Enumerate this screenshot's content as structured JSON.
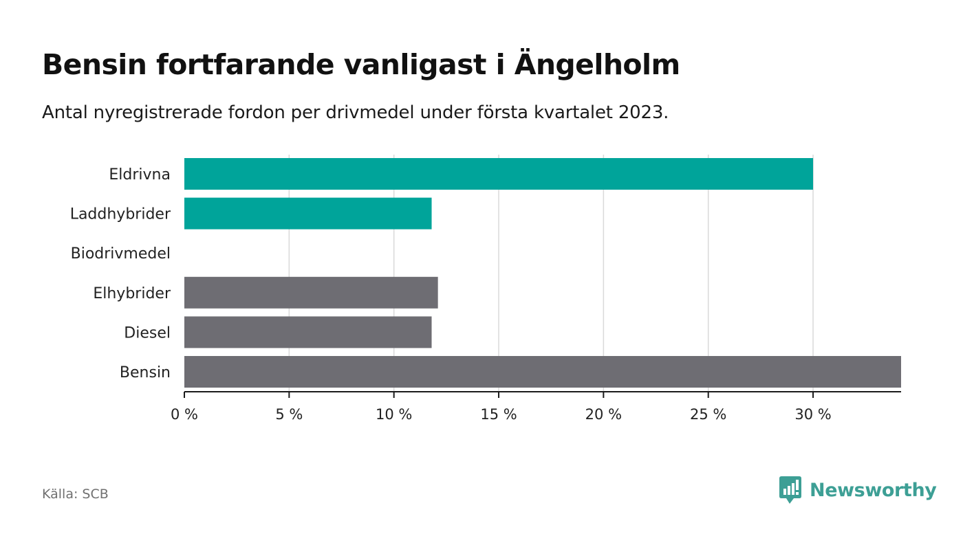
{
  "title": "Bensin fortfarande vanligast i Ängelholm",
  "subtitle": "Antal nyregistrerade fordon per drivmedel under första kvartalet 2023.",
  "source": "Källa: SCB",
  "brand": {
    "name": "Newsworthy",
    "icon": "newsworthy-logo-icon",
    "color": "#3d9f95"
  },
  "chart_data": {
    "type": "bar",
    "orientation": "horizontal",
    "categories": [
      "Eldrivna",
      "Laddhybrider",
      "Biodrivmedel",
      "Elhybrider",
      "Diesel",
      "Bensin"
    ],
    "values": [
      30.0,
      11.8,
      0,
      12.1,
      11.8,
      34.2
    ],
    "colors": [
      "#00a49a",
      "#00a49a",
      "#00a49a",
      "#6e6d73",
      "#6e6d73",
      "#6e6d73"
    ],
    "xlim": [
      0,
      34.2
    ],
    "x_ticks": [
      0,
      5,
      10,
      15,
      20,
      25,
      30
    ],
    "x_tick_labels": [
      "0 %",
      "5 %",
      "10 %",
      "15 %",
      "20 %",
      "25 %",
      "30 %"
    ],
    "xlabel": "",
    "ylabel": "",
    "grid": "vertical",
    "legend": "none"
  }
}
